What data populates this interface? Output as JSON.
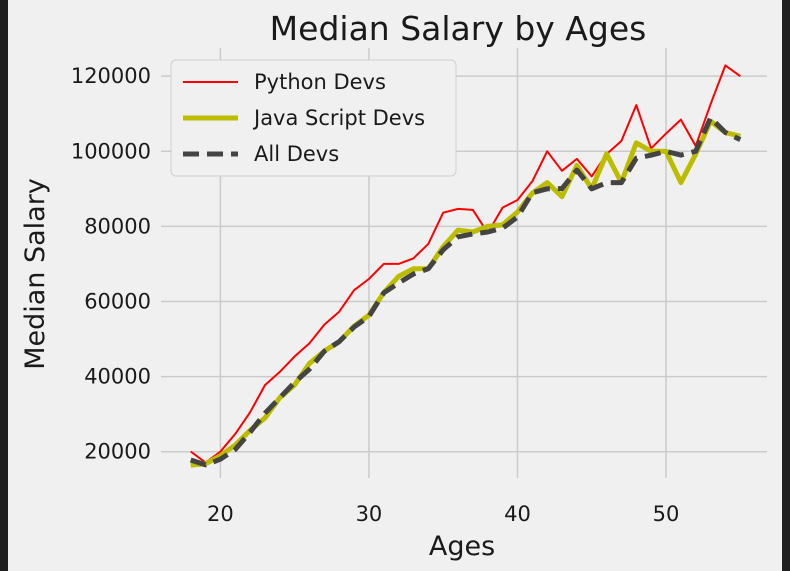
{
  "colors": {
    "figure_bg": "#f0f0f0",
    "plot_bg": "#f0f0f0",
    "grid": "#cbcbcb",
    "text": "#1a1a1a"
  },
  "chart_data": {
    "type": "line",
    "title": "Median Salary by Ages",
    "xlabel": "Ages",
    "ylabel": "Median Salary",
    "xlim": [
      16,
      56.8
    ],
    "ylim": [
      13000,
      127500
    ],
    "xticks": [
      20,
      30,
      40,
      50
    ],
    "yticks": [
      20000,
      40000,
      60000,
      80000,
      100000,
      120000
    ],
    "xtick_labels": [
      "20",
      "30",
      "40",
      "50"
    ],
    "ytick_labels": [
      "20000",
      "40000",
      "60000",
      "80000",
      "100000",
      "120000"
    ],
    "grid": true,
    "legend_position": "upper left",
    "x": [
      18,
      19,
      20,
      21,
      22,
      23,
      24,
      25,
      26,
      27,
      28,
      29,
      30,
      31,
      32,
      33,
      34,
      35,
      36,
      37,
      38,
      39,
      40,
      41,
      42,
      43,
      44,
      45,
      46,
      47,
      48,
      49,
      50,
      51,
      52,
      53,
      54,
      55
    ],
    "series": [
      {
        "name": "Python Devs",
        "color": "#fe0000",
        "style": "solid",
        "width": 2,
        "values": [
          20046,
          17100,
          20000,
          24744,
          30500,
          37732,
          41247,
          45372,
          48876,
          53850,
          57287,
          63016,
          65998,
          70003,
          70000,
          71496,
          75370,
          83640,
          84666,
          84392,
          78254,
          85000,
          87038,
          91991,
          100000,
          94796,
          97962,
          93302,
          99240,
          102736,
          112285,
          100771,
          104708,
          108423,
          101407,
          112542,
          122870,
          120000
        ]
      },
      {
        "name": "Java Script Devs",
        "color": "#bdbd00",
        "style": "solid",
        "width": 5,
        "values": [
          16446,
          16791,
          18942,
          21780,
          25704,
          29000,
          34372,
          37810,
          43515,
          46823,
          49293,
          53437,
          56373,
          62375,
          66674,
          68745,
          68746,
          74583,
          79000,
          78508,
          79996,
          80403,
          83820,
          88833,
          91660,
          87892,
          96243,
          90000,
          99313,
          91660,
          102264,
          100000,
          100000,
          91660,
          99240,
          108000,
          105000,
          104000
        ]
      },
      {
        "name": "All Devs",
        "color": "#444444",
        "style": "dashed",
        "width": 5,
        "values": [
          17784,
          16500,
          18012,
          20628,
          25206,
          30252,
          34368,
          38496,
          42000,
          46752,
          49320,
          53200,
          56000,
          62316,
          64928,
          67317,
          68748,
          73752,
          77232,
          78000,
          78508,
          79536,
          82488,
          88935,
          90000,
          90056,
          95000,
          90000,
          91633,
          91660,
          98150,
          98964,
          100000,
          98988,
          100000,
          108923,
          105000,
          103117
        ]
      }
    ]
  }
}
